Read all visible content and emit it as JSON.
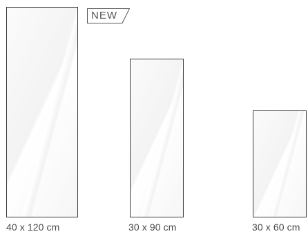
{
  "badge": {
    "label": "NEW"
  },
  "tiles": [
    {
      "size_label": "40 x 120 cm"
    },
    {
      "size_label": "30 x 90 cm"
    },
    {
      "size_label": "30 x 60 cm"
    }
  ],
  "colors": {
    "border": "#3a3a3a",
    "label_text": "#4a4a4a",
    "badge_text": "#555555"
  }
}
